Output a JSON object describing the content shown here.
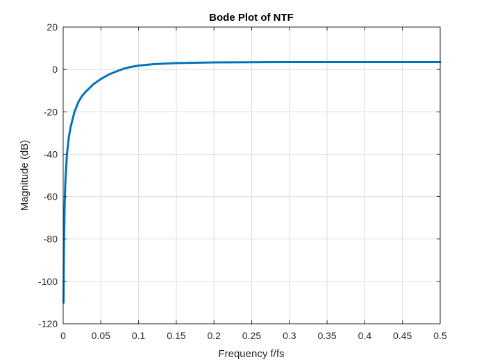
{
  "chart_data": {
    "type": "line",
    "title": "Bode Plot of NTF",
    "xlabel": "Frequency f/fs",
    "ylabel": "Magnitude (dB)",
    "xlim": [
      0,
      0.5
    ],
    "ylim": [
      -120,
      20
    ],
    "grid": true,
    "x_ticks": [
      0,
      0.05,
      0.1,
      0.15,
      0.2,
      0.25,
      0.3,
      0.35,
      0.4,
      0.45,
      0.5
    ],
    "x_tick_labels": [
      "0",
      "0.05",
      "0.1",
      "0.15",
      "0.2",
      "0.25",
      "0.3",
      "0.35",
      "0.4",
      "0.45",
      "0.5"
    ],
    "y_ticks": [
      20,
      0,
      -20,
      -40,
      -60,
      -80,
      -100,
      -120
    ],
    "y_tick_labels": [
      "20",
      "0",
      "-20",
      "-40",
      "-60",
      "-80",
      "-100",
      "-120"
    ],
    "series": [
      {
        "color": "#0072BD",
        "x": [
          0.0005,
          0.001,
          0.002,
          0.003,
          0.005,
          0.0075,
          0.01,
          0.015,
          0.02,
          0.025,
          0.03,
          0.04,
          0.05,
          0.06,
          0.07,
          0.08,
          0.09,
          0.1,
          0.12,
          0.15,
          0.2,
          0.25,
          0.3,
          0.35,
          0.4,
          0.45,
          0.5
        ],
        "y": [
          -110,
          -85,
          -63,
          -52,
          -40,
          -32,
          -27,
          -20,
          -15.5,
          -12.5,
          -10.5,
          -7,
          -4.5,
          -2.5,
          -1,
          0.3,
          1.2,
          1.8,
          2.5,
          3.0,
          3.3,
          3.4,
          3.5,
          3.5,
          3.5,
          3.5,
          3.5
        ]
      }
    ]
  }
}
